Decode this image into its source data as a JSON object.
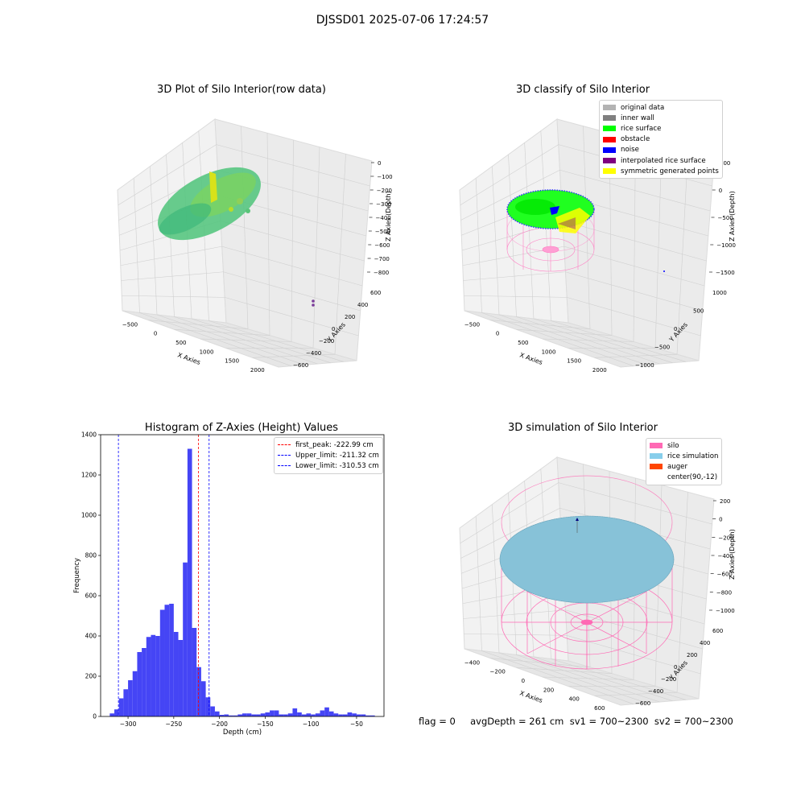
{
  "suptitle": "DJSSD01 2025-07-06 17:24:57",
  "panels": {
    "raw": {
      "title": "3D Plot of Silo Interior(row data)",
      "xlabel": "X Axies",
      "ylabel": "Y Axies",
      "zlabel": "Z Axies (Depth)",
      "xticks": [
        "-500",
        "0",
        "500",
        "1000",
        "1500",
        "2000"
      ],
      "yticks": [
        "600",
        "400",
        "200",
        "0",
        "-200",
        "-400",
        "-600"
      ],
      "zticks": [
        "0",
        "-100",
        "-200",
        "-300",
        "-400",
        "-500",
        "-600",
        "-700",
        "-800"
      ]
    },
    "classify": {
      "title": "3D classify of Silo Interior",
      "xlabel": "X Axies",
      "ylabel": "Y Axies",
      "zlabel": "Z Axies (Depth)",
      "xticks": [
        "-500",
        "0",
        "500",
        "1000",
        "1500",
        "2000"
      ],
      "yticks": [
        "1000",
        "500",
        "0",
        "-500",
        "-1000"
      ],
      "zticks": [
        "500",
        "0",
        "-500",
        "-1000",
        "-1500"
      ],
      "legend": [
        {
          "label": "original data",
          "color": "#b3b3b3"
        },
        {
          "label": "inner wall",
          "color": "#808080"
        },
        {
          "label": "rice surface",
          "color": "#00ff00"
        },
        {
          "label": "obstacle",
          "color": "#ff0000"
        },
        {
          "label": "noise",
          "color": "#0000ff"
        },
        {
          "label": "interpolated rice surface",
          "color": "#800080"
        },
        {
          "label": "symmetric generated points",
          "color": "#ffff00"
        }
      ]
    },
    "simulation": {
      "title": "3D simulation of Silo Interior",
      "xlabel": "X Axies",
      "ylabel": "Y Axies",
      "zlabel": "Z Axies (Depth)",
      "xticks": [
        "-400",
        "-200",
        "0",
        "200",
        "400",
        "600"
      ],
      "yticks": [
        "600",
        "400",
        "200",
        "0",
        "-200",
        "-400",
        "-600"
      ],
      "zticks": [
        "200",
        "0",
        "-200",
        "-400",
        "-600",
        "-800",
        "-1000"
      ],
      "legend": [
        {
          "label": "silo",
          "color": "#ff69b4"
        },
        {
          "label": "rice simulation",
          "color": "#87ceeb"
        },
        {
          "label": "auger",
          "color": "#ff4500"
        },
        {
          "label": "center(90,-12)",
          "color": ""
        }
      ]
    }
  },
  "status_text": "flag = 0     avgDepth = 261 cm  sv1 = 700~2300  sv2 = 700~2300",
  "chart_data": [
    {
      "type": "bar",
      "title": "Histogram of Z-Axies (Height) Values",
      "xlabel": "Depth (cm)",
      "ylabel": "Frequency",
      "xlim": [
        -330,
        -20
      ],
      "ylim": [
        0,
        1400
      ],
      "xticks": [
        -300,
        -250,
        -200,
        -150,
        -100,
        -50
      ],
      "yticks": [
        0,
        200,
        400,
        600,
        800,
        1000,
        1200,
        1400
      ],
      "color": "#4545f5",
      "bins": [
        {
          "x0": -320,
          "x1": -315,
          "value": 15
        },
        {
          "x0": -315,
          "x1": -310,
          "value": 35
        },
        {
          "x0": -310,
          "x1": -305,
          "value": 90
        },
        {
          "x0": -305,
          "x1": -300,
          "value": 135
        },
        {
          "x0": -300,
          "x1": -295,
          "value": 180
        },
        {
          "x0": -295,
          "x1": -290,
          "value": 225
        },
        {
          "x0": -290,
          "x1": -285,
          "value": 320
        },
        {
          "x0": -285,
          "x1": -280,
          "value": 340
        },
        {
          "x0": -280,
          "x1": -275,
          "value": 395
        },
        {
          "x0": -275,
          "x1": -270,
          "value": 405
        },
        {
          "x0": -270,
          "x1": -265,
          "value": 400
        },
        {
          "x0": -265,
          "x1": -260,
          "value": 530
        },
        {
          "x0": -260,
          "x1": -255,
          "value": 555
        },
        {
          "x0": -255,
          "x1": -250,
          "value": 560
        },
        {
          "x0": -250,
          "x1": -245,
          "value": 420
        },
        {
          "x0": -245,
          "x1": -240,
          "value": 380
        },
        {
          "x0": -240,
          "x1": -235,
          "value": 765
        },
        {
          "x0": -235,
          "x1": -230,
          "value": 1330
        },
        {
          "x0": -230,
          "x1": -225,
          "value": 440
        },
        {
          "x0": -225,
          "x1": -220,
          "value": 245
        },
        {
          "x0": -220,
          "x1": -215,
          "value": 175
        },
        {
          "x0": -215,
          "x1": -210,
          "value": 95
        },
        {
          "x0": -210,
          "x1": -205,
          "value": 50
        },
        {
          "x0": -205,
          "x1": -200,
          "value": 25
        },
        {
          "x0": -200,
          "x1": -195,
          "value": 8
        },
        {
          "x0": -195,
          "x1": -190,
          "value": 10
        },
        {
          "x0": -190,
          "x1": -185,
          "value": 5
        },
        {
          "x0": -185,
          "x1": -180,
          "value": 5
        },
        {
          "x0": -180,
          "x1": -175,
          "value": 10
        },
        {
          "x0": -175,
          "x1": -170,
          "value": 15
        },
        {
          "x0": -170,
          "x1": -165,
          "value": 15
        },
        {
          "x0": -165,
          "x1": -160,
          "value": 10
        },
        {
          "x0": -160,
          "x1": -155,
          "value": 10
        },
        {
          "x0": -155,
          "x1": -150,
          "value": 15
        },
        {
          "x0": -150,
          "x1": -145,
          "value": 20
        },
        {
          "x0": -145,
          "x1": -140,
          "value": 30
        },
        {
          "x0": -140,
          "x1": -135,
          "value": 30
        },
        {
          "x0": -135,
          "x1": -130,
          "value": 10
        },
        {
          "x0": -130,
          "x1": -125,
          "value": 10
        },
        {
          "x0": -125,
          "x1": -120,
          "value": 15
        },
        {
          "x0": -120,
          "x1": -115,
          "value": 40
        },
        {
          "x0": -115,
          "x1": -110,
          "value": 20
        },
        {
          "x0": -110,
          "x1": -105,
          "value": 10
        },
        {
          "x0": -105,
          "x1": -100,
          "value": 15
        },
        {
          "x0": -100,
          "x1": -95,
          "value": 10
        },
        {
          "x0": -95,
          "x1": -90,
          "value": 15
        },
        {
          "x0": -90,
          "x1": -85,
          "value": 30
        },
        {
          "x0": -85,
          "x1": -80,
          "value": 45
        },
        {
          "x0": -80,
          "x1": -75,
          "value": 25
        },
        {
          "x0": -75,
          "x1": -70,
          "value": 15
        },
        {
          "x0": -70,
          "x1": -65,
          "value": 10
        },
        {
          "x0": -65,
          "x1": -60,
          "value": 10
        },
        {
          "x0": -60,
          "x1": -55,
          "value": 20
        },
        {
          "x0": -55,
          "x1": -50,
          "value": 15
        },
        {
          "x0": -50,
          "x1": -45,
          "value": 10
        },
        {
          "x0": -45,
          "x1": -40,
          "value": 10
        },
        {
          "x0": -40,
          "x1": -35,
          "value": 5
        },
        {
          "x0": -35,
          "x1": -30,
          "value": 5
        }
      ],
      "vlines": [
        {
          "label": "first_peak: -222.99 cm",
          "x": -222.99,
          "color": "#ff0000"
        },
        {
          "label": "Upper_limit: -211.32 cm",
          "x": -211.32,
          "color": "#0000ff"
        },
        {
          "label": "Lower_limit: -310.53 cm",
          "x": -310.53,
          "color": "#0000ff"
        }
      ],
      "legend_position": "top-right"
    }
  ]
}
